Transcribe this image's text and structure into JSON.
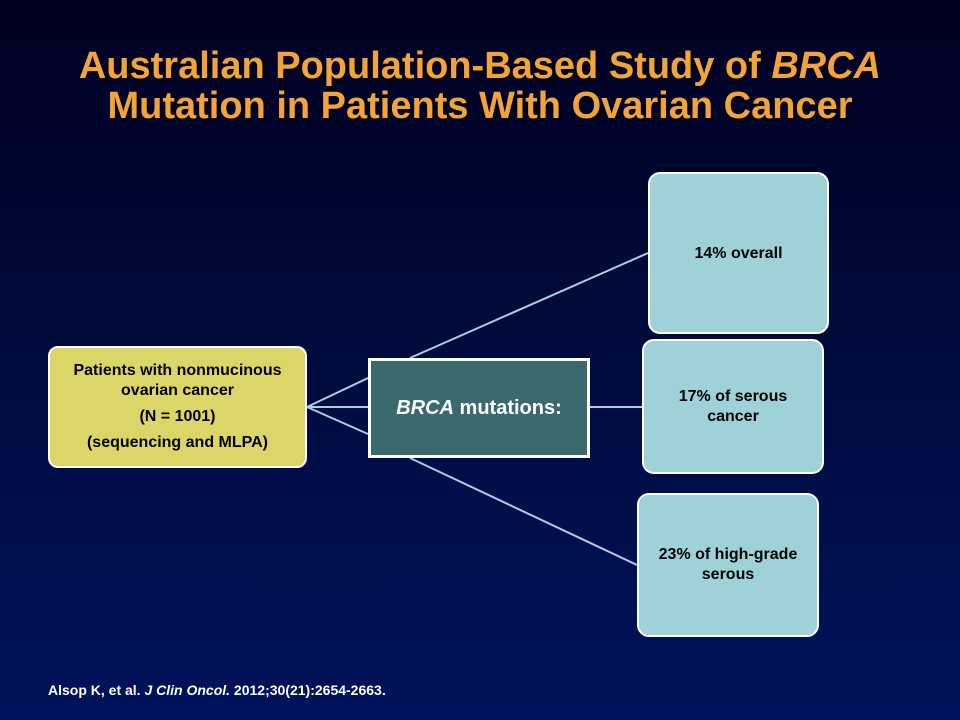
{
  "title": {
    "line1_prefix": "Australian Population-Based Study of ",
    "line1_italic": "BRCA",
    "line2": "Mutation in Patients With Ovarian Cancer"
  },
  "patients": {
    "line1": "Patients with nonmucinous",
    "line2": "ovarian cancer",
    "line3": "(N = 1001)",
    "line4": "(sequencing and MLPA)"
  },
  "center": {
    "italic": "BRCA",
    "rest": " mutations:"
  },
  "outcomes": [
    {
      "text": "14% overall"
    },
    {
      "text": "17% of serous cancer"
    },
    {
      "text": "23% of high-grade serous"
    }
  ],
  "citation": {
    "prefix": "Alsop K, et al. ",
    "journal": "J Clin Oncol.",
    "suffix": " 2012;30(21):2654-2663."
  },
  "colors": {
    "title": "#f2a33a",
    "patients_box": "#dcd668",
    "center_box": "#3a6a6d",
    "outcome_box": "#9fd1d8",
    "connector": "#a9cfe0"
  }
}
